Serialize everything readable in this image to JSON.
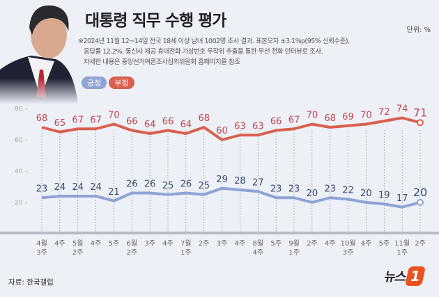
{
  "header": {
    "title": "대통령 직무 수행 평가",
    "unit": "단위: %",
    "notes": [
      "※2024년 11월 12~14일 전국 18세 이상 남녀 1002명 조사 결과. 표본오차 ±3.1%p(95% 신뢰수준),",
      "응답률 12.2%. 통신사 제공 휴대전화 가상번호 무작위 추출을 통한 무선 전화 인터뷰로 조사.",
      "자세한 내용은 중앙선거여론조사심의위원회 홈페이지를 참조"
    ]
  },
  "footer": {
    "source": "자료: 한국갤럽",
    "logo": "뉴스1"
  },
  "chart_data": {
    "type": "line",
    "title": "대통령 직무 수행 평가",
    "ylabel": "",
    "ylim": [
      0,
      80
    ],
    "yticks": [
      20,
      40,
      60,
      80
    ],
    "grid": "vertical dashed",
    "legend": "top-left",
    "categories": [
      [
        "4월",
        "3주"
      ],
      [
        "4주",
        ""
      ],
      [
        "5월",
        "2주"
      ],
      [
        "4주",
        ""
      ],
      [
        "5주",
        ""
      ],
      [
        "6월",
        "2주"
      ],
      [
        "3주",
        ""
      ],
      [
        "4주",
        ""
      ],
      [
        "7월",
        "1주"
      ],
      [
        "2주",
        ""
      ],
      [
        "3주",
        ""
      ],
      [
        "4주",
        ""
      ],
      [
        "8월",
        "4주"
      ],
      [
        "5주",
        ""
      ],
      [
        "9월",
        "1주"
      ],
      [
        "2주",
        ""
      ],
      [
        "4주",
        ""
      ],
      [
        "10월",
        "3주"
      ],
      [
        "4주",
        ""
      ],
      [
        "5주",
        ""
      ],
      [
        "11월",
        "1주"
      ],
      [
        "2주",
        ""
      ]
    ],
    "series": [
      {
        "name": "긍정",
        "color": "#8fa3d4",
        "label_color": "#3a4a6e",
        "values": [
          23,
          24,
          24,
          24,
          21,
          26,
          26,
          25,
          26,
          25,
          29,
          28,
          27,
          23,
          23,
          20,
          23,
          22,
          20,
          19,
          17,
          20
        ]
      },
      {
        "name": "부정",
        "color": "#d9604f",
        "label_color": "#c0474a",
        "values": [
          68,
          65,
          67,
          67,
          70,
          66,
          64,
          66,
          64,
          68,
          60,
          63,
          63,
          66,
          67,
          70,
          68,
          69,
          70,
          72,
          74,
          71
        ]
      }
    ]
  }
}
